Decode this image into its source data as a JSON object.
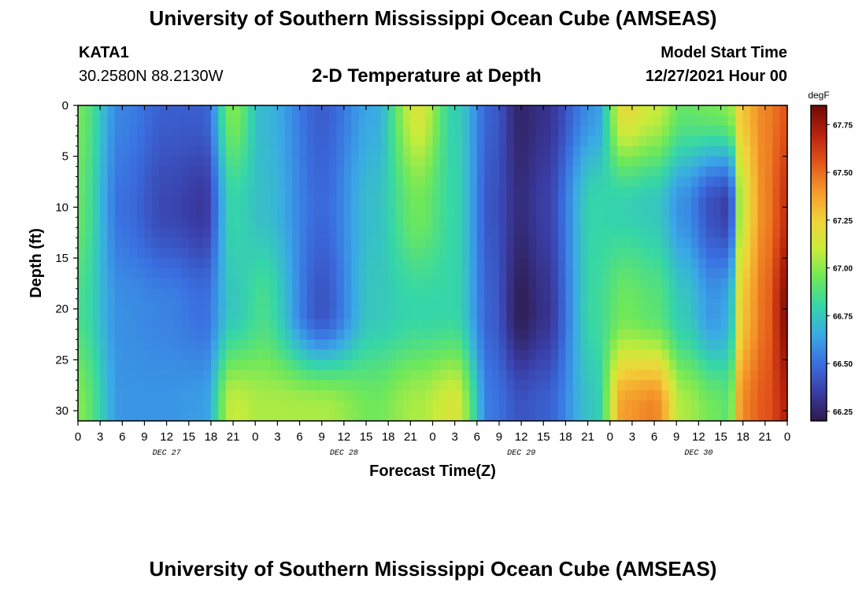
{
  "header": {
    "title": "University of Southern Mississippi Ocean Cube (AMSEAS)",
    "station": "KATA1",
    "coords": "30.2580N  88.2130W",
    "subtitle": "2-D Temperature at Depth",
    "model_label": "Model Start Time",
    "model_time": "12/27/2021 Hour 00"
  },
  "footer": {
    "title": "University of Southern Mississippi Ocean Cube (AMSEAS)"
  },
  "chart_data": {
    "type": "heatmap",
    "title": "2-D Temperature at Depth",
    "xlabel": "Forecast Time(Z)",
    "ylabel": "Depth (ft)",
    "x_tick_labels": [
      "0",
      "3",
      "6",
      "9",
      "12",
      "15",
      "18",
      "21",
      "0",
      "3",
      "6",
      "9",
      "12",
      "15",
      "18",
      "21",
      "0",
      "3",
      "6",
      "9",
      "12",
      "15",
      "18",
      "21",
      "0",
      "3",
      "6",
      "9",
      "12",
      "15",
      "18",
      "21",
      "0"
    ],
    "x_range_hours": [
      0,
      96
    ],
    "day_labels": [
      {
        "label": "DEC 27",
        "hour": 12
      },
      {
        "label": "DEC 28",
        "hour": 36
      },
      {
        "label": "DEC 29",
        "hour": 60
      },
      {
        "label": "DEC 30",
        "hour": 84
      }
    ],
    "y_ticks": [
      0,
      5,
      10,
      15,
      20,
      25,
      30
    ],
    "y_tick_labels": [
      "0",
      "5",
      "10",
      "15",
      "20",
      "25",
      "30"
    ],
    "ylim": [
      0,
      31
    ],
    "y_inverted": true,
    "colorbar": {
      "unit": "degF",
      "range": [
        66.2,
        67.85
      ],
      "ticks": [
        66.25,
        66.5,
        66.75,
        67.0,
        67.25,
        67.5,
        67.75
      ],
      "tick_labels": [
        "66.25",
        "66.50",
        "66.75",
        "67.00",
        "67.25",
        "67.50",
        "67.75"
      ],
      "colormap": [
        "#2e1a4a",
        "#3a3da6",
        "#3a6fe0",
        "#3aa9e6",
        "#35d6a8",
        "#6fe85a",
        "#c9ec3a",
        "#f2d23a",
        "#f59a2a",
        "#e3561a",
        "#b8220d",
        "#6e0a05"
      ]
    },
    "field_description_hours": [
      0,
      6,
      12,
      17,
      21,
      25,
      33,
      40,
      46,
      51,
      56,
      60,
      63,
      70,
      74,
      78,
      82,
      86,
      88,
      90,
      93,
      96
    ],
    "field_profiles_depth": [
      0,
      10,
      20,
      30
    ],
    "field_values": [
      [
        66.95,
        66.92,
        66.85,
        66.98
      ],
      [
        66.55,
        66.5,
        66.58,
        66.6
      ],
      [
        66.45,
        66.38,
        66.55,
        66.6
      ],
      [
        66.45,
        66.33,
        66.5,
        66.62
      ],
      [
        66.98,
        66.8,
        66.75,
        67.1
      ],
      [
        66.7,
        66.72,
        66.85,
        67.05
      ],
      [
        66.45,
        66.48,
        66.42,
        67.05
      ],
      [
        66.65,
        66.72,
        66.75,
        66.95
      ],
      [
        67.15,
        66.95,
        66.8,
        67.05
      ],
      [
        66.78,
        66.8,
        66.8,
        67.15
      ],
      [
        66.45,
        66.42,
        66.45,
        66.52
      ],
      [
        66.25,
        66.28,
        66.22,
        66.42
      ],
      [
        66.3,
        66.35,
        66.3,
        66.45
      ],
      [
        66.6,
        66.8,
        66.82,
        66.75
      ],
      [
        67.2,
        66.78,
        66.95,
        67.4
      ],
      [
        67.1,
        66.75,
        66.9,
        67.45
      ],
      [
        66.92,
        66.58,
        66.75,
        67.05
      ],
      [
        66.95,
        66.4,
        66.6,
        66.95
      ],
      [
        66.98,
        66.35,
        66.65,
        66.9
      ],
      [
        67.3,
        67.15,
        67.3,
        67.45
      ],
      [
        67.45,
        67.45,
        67.5,
        67.55
      ],
      [
        67.55,
        67.65,
        67.8,
        67.7
      ]
    ]
  }
}
